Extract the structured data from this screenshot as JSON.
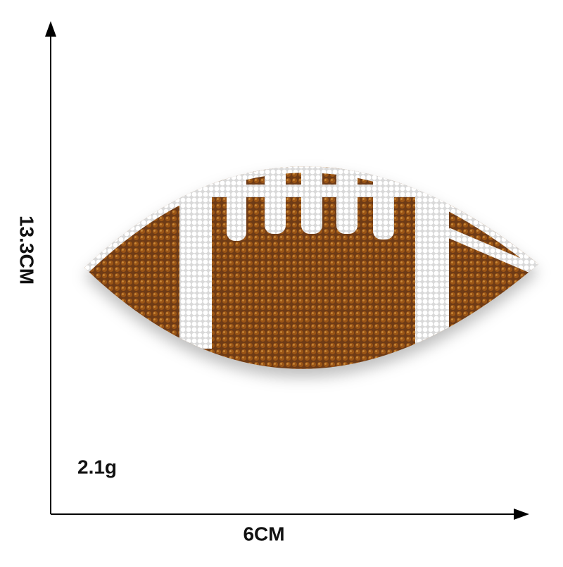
{
  "labels": {
    "height": "13.3CM",
    "width": "6CM",
    "weight": "2.1g"
  }
}
